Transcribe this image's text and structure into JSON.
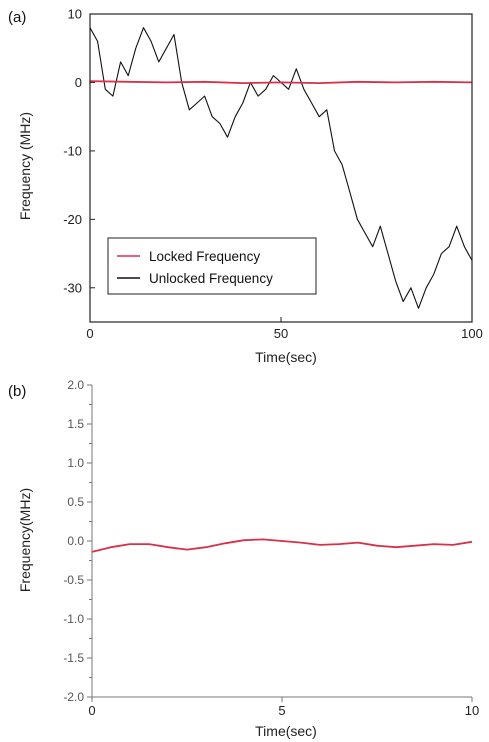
{
  "colors": {
    "locked": "#d9304a",
    "unlocked": "#111111",
    "axis": "#222222",
    "axis_b": "#777777"
  },
  "chart_data": [
    {
      "panel_label": "(a)",
      "type": "line",
      "xlabel": "Time(sec)",
      "ylabel": "Frequency (MHz)",
      "xlim": [
        0,
        100
      ],
      "ylim": [
        -35,
        10
      ],
      "x_ticks": [
        0,
        50,
        100
      ],
      "y_ticks": [
        10,
        0,
        -10,
        -20,
        -30
      ],
      "grid": false,
      "legend_position": "lower-left",
      "series": [
        {
          "name": "Locked Frequency",
          "color": "#d9304a",
          "x": [
            0,
            10,
            20,
            30,
            40,
            50,
            60,
            70,
            80,
            90,
            100
          ],
          "y": [
            0.2,
            0.1,
            0.0,
            0.1,
            -0.1,
            0.0,
            -0.1,
            0.1,
            0.0,
            0.1,
            0.0
          ]
        },
        {
          "name": "Unlocked Frequency",
          "color": "#111111",
          "x": [
            0,
            2,
            4,
            6,
            8,
            10,
            12,
            14,
            16,
            18,
            20,
            22,
            24,
            26,
            28,
            30,
            32,
            34,
            36,
            38,
            40,
            42,
            44,
            46,
            48,
            50,
            52,
            54,
            56,
            58,
            60,
            62,
            64,
            66,
            68,
            70,
            72,
            74,
            76,
            78,
            80,
            82,
            84,
            86,
            88,
            90,
            92,
            94,
            96,
            98,
            100
          ],
          "y": [
            8,
            6,
            -1,
            -2,
            3,
            1,
            5,
            8,
            6,
            3,
            5,
            7,
            0,
            -4,
            -3,
            -2,
            -5,
            -6,
            -8,
            -5,
            -3,
            0,
            -2,
            -1,
            1,
            0,
            -1,
            2,
            -1,
            -3,
            -5,
            -4,
            -10,
            -12,
            -16,
            -20,
            -22,
            -24,
            -21,
            -25,
            -29,
            -32,
            -30,
            -33,
            -30,
            -28,
            -25,
            -24,
            -21,
            -24,
            -26
          ]
        }
      ]
    },
    {
      "panel_label": "(b)",
      "type": "line",
      "xlabel": "Time(sec)",
      "ylabel": "Frequency(MHz)",
      "xlim": [
        0,
        10
      ],
      "ylim": [
        -2.0,
        2.0
      ],
      "x_ticks": [
        0,
        5,
        10
      ],
      "y_ticks": [
        "2.0",
        "1.5",
        "1.0",
        "0.5",
        "0.0",
        "-0.5",
        "-1.0",
        "-1.5",
        "-2.0"
      ],
      "grid": false,
      "series": [
        {
          "color": "#d9304a",
          "x": [
            0,
            0.5,
            1,
            1.5,
            2,
            2.5,
            3,
            3.5,
            4,
            4.5,
            5,
            5.5,
            6,
            6.5,
            7,
            7.5,
            8,
            8.5,
            9,
            9.5,
            10
          ],
          "y": [
            -0.14,
            -0.08,
            -0.04,
            -0.04,
            -0.08,
            -0.11,
            -0.08,
            -0.03,
            0.01,
            0.02,
            0.0,
            -0.02,
            -0.05,
            -0.04,
            -0.02,
            -0.06,
            -0.08,
            -0.06,
            -0.04,
            -0.05,
            -0.01
          ]
        }
      ]
    }
  ]
}
